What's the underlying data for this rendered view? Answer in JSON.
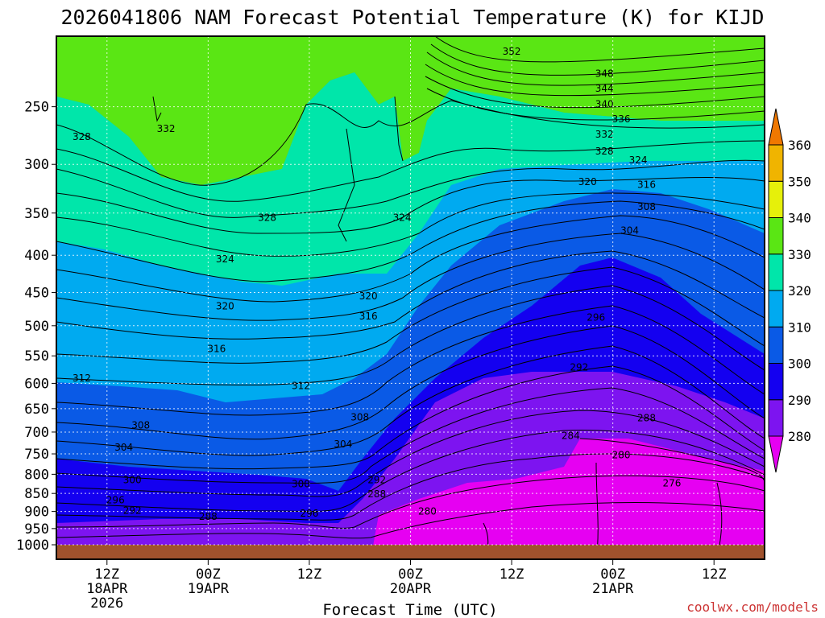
{
  "chart_data": {
    "type": "heatmap",
    "title": "2026041806 NAM Forecast Potential Temperature (K) for KIJD",
    "xlabel": "Forecast Time (UTC)",
    "ylabel": "",
    "credit": "coolwx.com/models",
    "y_ticks": [
      250,
      300,
      350,
      400,
      450,
      500,
      550,
      600,
      650,
      700,
      750,
      800,
      850,
      900,
      950,
      1000
    ],
    "y_range_hpa": [
      200,
      1000
    ],
    "y_scale": "log-pressure",
    "x_ticks": [
      {
        "hour": 6,
        "line1": "12Z",
        "line2": "18APR",
        "line3": "2026"
      },
      {
        "hour": 18,
        "line1": "00Z",
        "line2": "19APR",
        "line3": ""
      },
      {
        "hour": 30,
        "line1": "12Z",
        "line2": "",
        "line3": ""
      },
      {
        "hour": 42,
        "line1": "00Z",
        "line2": "20APR",
        "line3": ""
      },
      {
        "hour": 54,
        "line1": "12Z",
        "line2": "",
        "line3": ""
      },
      {
        "hour": 66,
        "line1": "00Z",
        "line2": "21APR",
        "line3": ""
      },
      {
        "hour": 78,
        "line1": "12Z",
        "line2": "",
        "line3": ""
      }
    ],
    "x_range_hours": [
      0,
      84
    ],
    "grid": true,
    "colorbar": {
      "levels": [
        280,
        290,
        300,
        310,
        320,
        330,
        340,
        350,
        360
      ],
      "colors": [
        "#e600f2",
        "#7d14f0",
        "#1400f0",
        "#0a5ae6",
        "#00aaf0",
        "#00e6aa",
        "#5ae614",
        "#e6f00a",
        "#f0b400",
        "#f07800"
      ]
    },
    "contour_labels": [
      {
        "value": 352,
        "hour": 54,
        "p": 210
      },
      {
        "value": 348,
        "hour": 65,
        "p": 225
      },
      {
        "value": 344,
        "hour": 65,
        "p": 236
      },
      {
        "value": 340,
        "hour": 65,
        "p": 248
      },
      {
        "value": 336,
        "hour": 67,
        "p": 260
      },
      {
        "value": 332,
        "hour": 65,
        "p": 273
      },
      {
        "value": 328,
        "hour": 65,
        "p": 288
      },
      {
        "value": 324,
        "hour": 69,
        "p": 296
      },
      {
        "value": 320,
        "hour": 63,
        "p": 317
      },
      {
        "value": 316,
        "hour": 70,
        "p": 320
      },
      {
        "value": 308,
        "hour": 70,
        "p": 343
      },
      {
        "value": 304,
        "hour": 68,
        "p": 370
      },
      {
        "value": 296,
        "hour": 64,
        "p": 487
      },
      {
        "value": 292,
        "hour": 62,
        "p": 570
      },
      {
        "value": 288,
        "hour": 70,
        "p": 670
      },
      {
        "value": 284,
        "hour": 61,
        "p": 708
      },
      {
        "value": 280,
        "hour": 67,
        "p": 753
      },
      {
        "value": 276,
        "hour": 73,
        "p": 823
      },
      {
        "value": 328,
        "hour": 3,
        "p": 275
      },
      {
        "value": 332,
        "hour": 13,
        "p": 268
      },
      {
        "value": 328,
        "hour": 25,
        "p": 355
      },
      {
        "value": 324,
        "hour": 41,
        "p": 355
      },
      {
        "value": 324,
        "hour": 20,
        "p": 405
      },
      {
        "value": 320,
        "hour": 20,
        "p": 470
      },
      {
        "value": 320,
        "hour": 37,
        "p": 455
      },
      {
        "value": 316,
        "hour": 37,
        "p": 485
      },
      {
        "value": 316,
        "hour": 19,
        "p": 538
      },
      {
        "value": 312,
        "hour": 3,
        "p": 590
      },
      {
        "value": 312,
        "hour": 29,
        "p": 605
      },
      {
        "value": 308,
        "hour": 10,
        "p": 685
      },
      {
        "value": 308,
        "hour": 36,
        "p": 668
      },
      {
        "value": 304,
        "hour": 8,
        "p": 735
      },
      {
        "value": 304,
        "hour": 34,
        "p": 727
      },
      {
        "value": 300,
        "hour": 9,
        "p": 815
      },
      {
        "value": 300,
        "hour": 29,
        "p": 825
      },
      {
        "value": 292,
        "hour": 38,
        "p": 815
      },
      {
        "value": 288,
        "hour": 38,
        "p": 852
      },
      {
        "value": 296,
        "hour": 7,
        "p": 868
      },
      {
        "value": 292,
        "hour": 9,
        "p": 897
      },
      {
        "value": 288,
        "hour": 18,
        "p": 915
      },
      {
        "value": 296,
        "hour": 30,
        "p": 905
      },
      {
        "value": 280,
        "hour": 44,
        "p": 900
      }
    ]
  }
}
